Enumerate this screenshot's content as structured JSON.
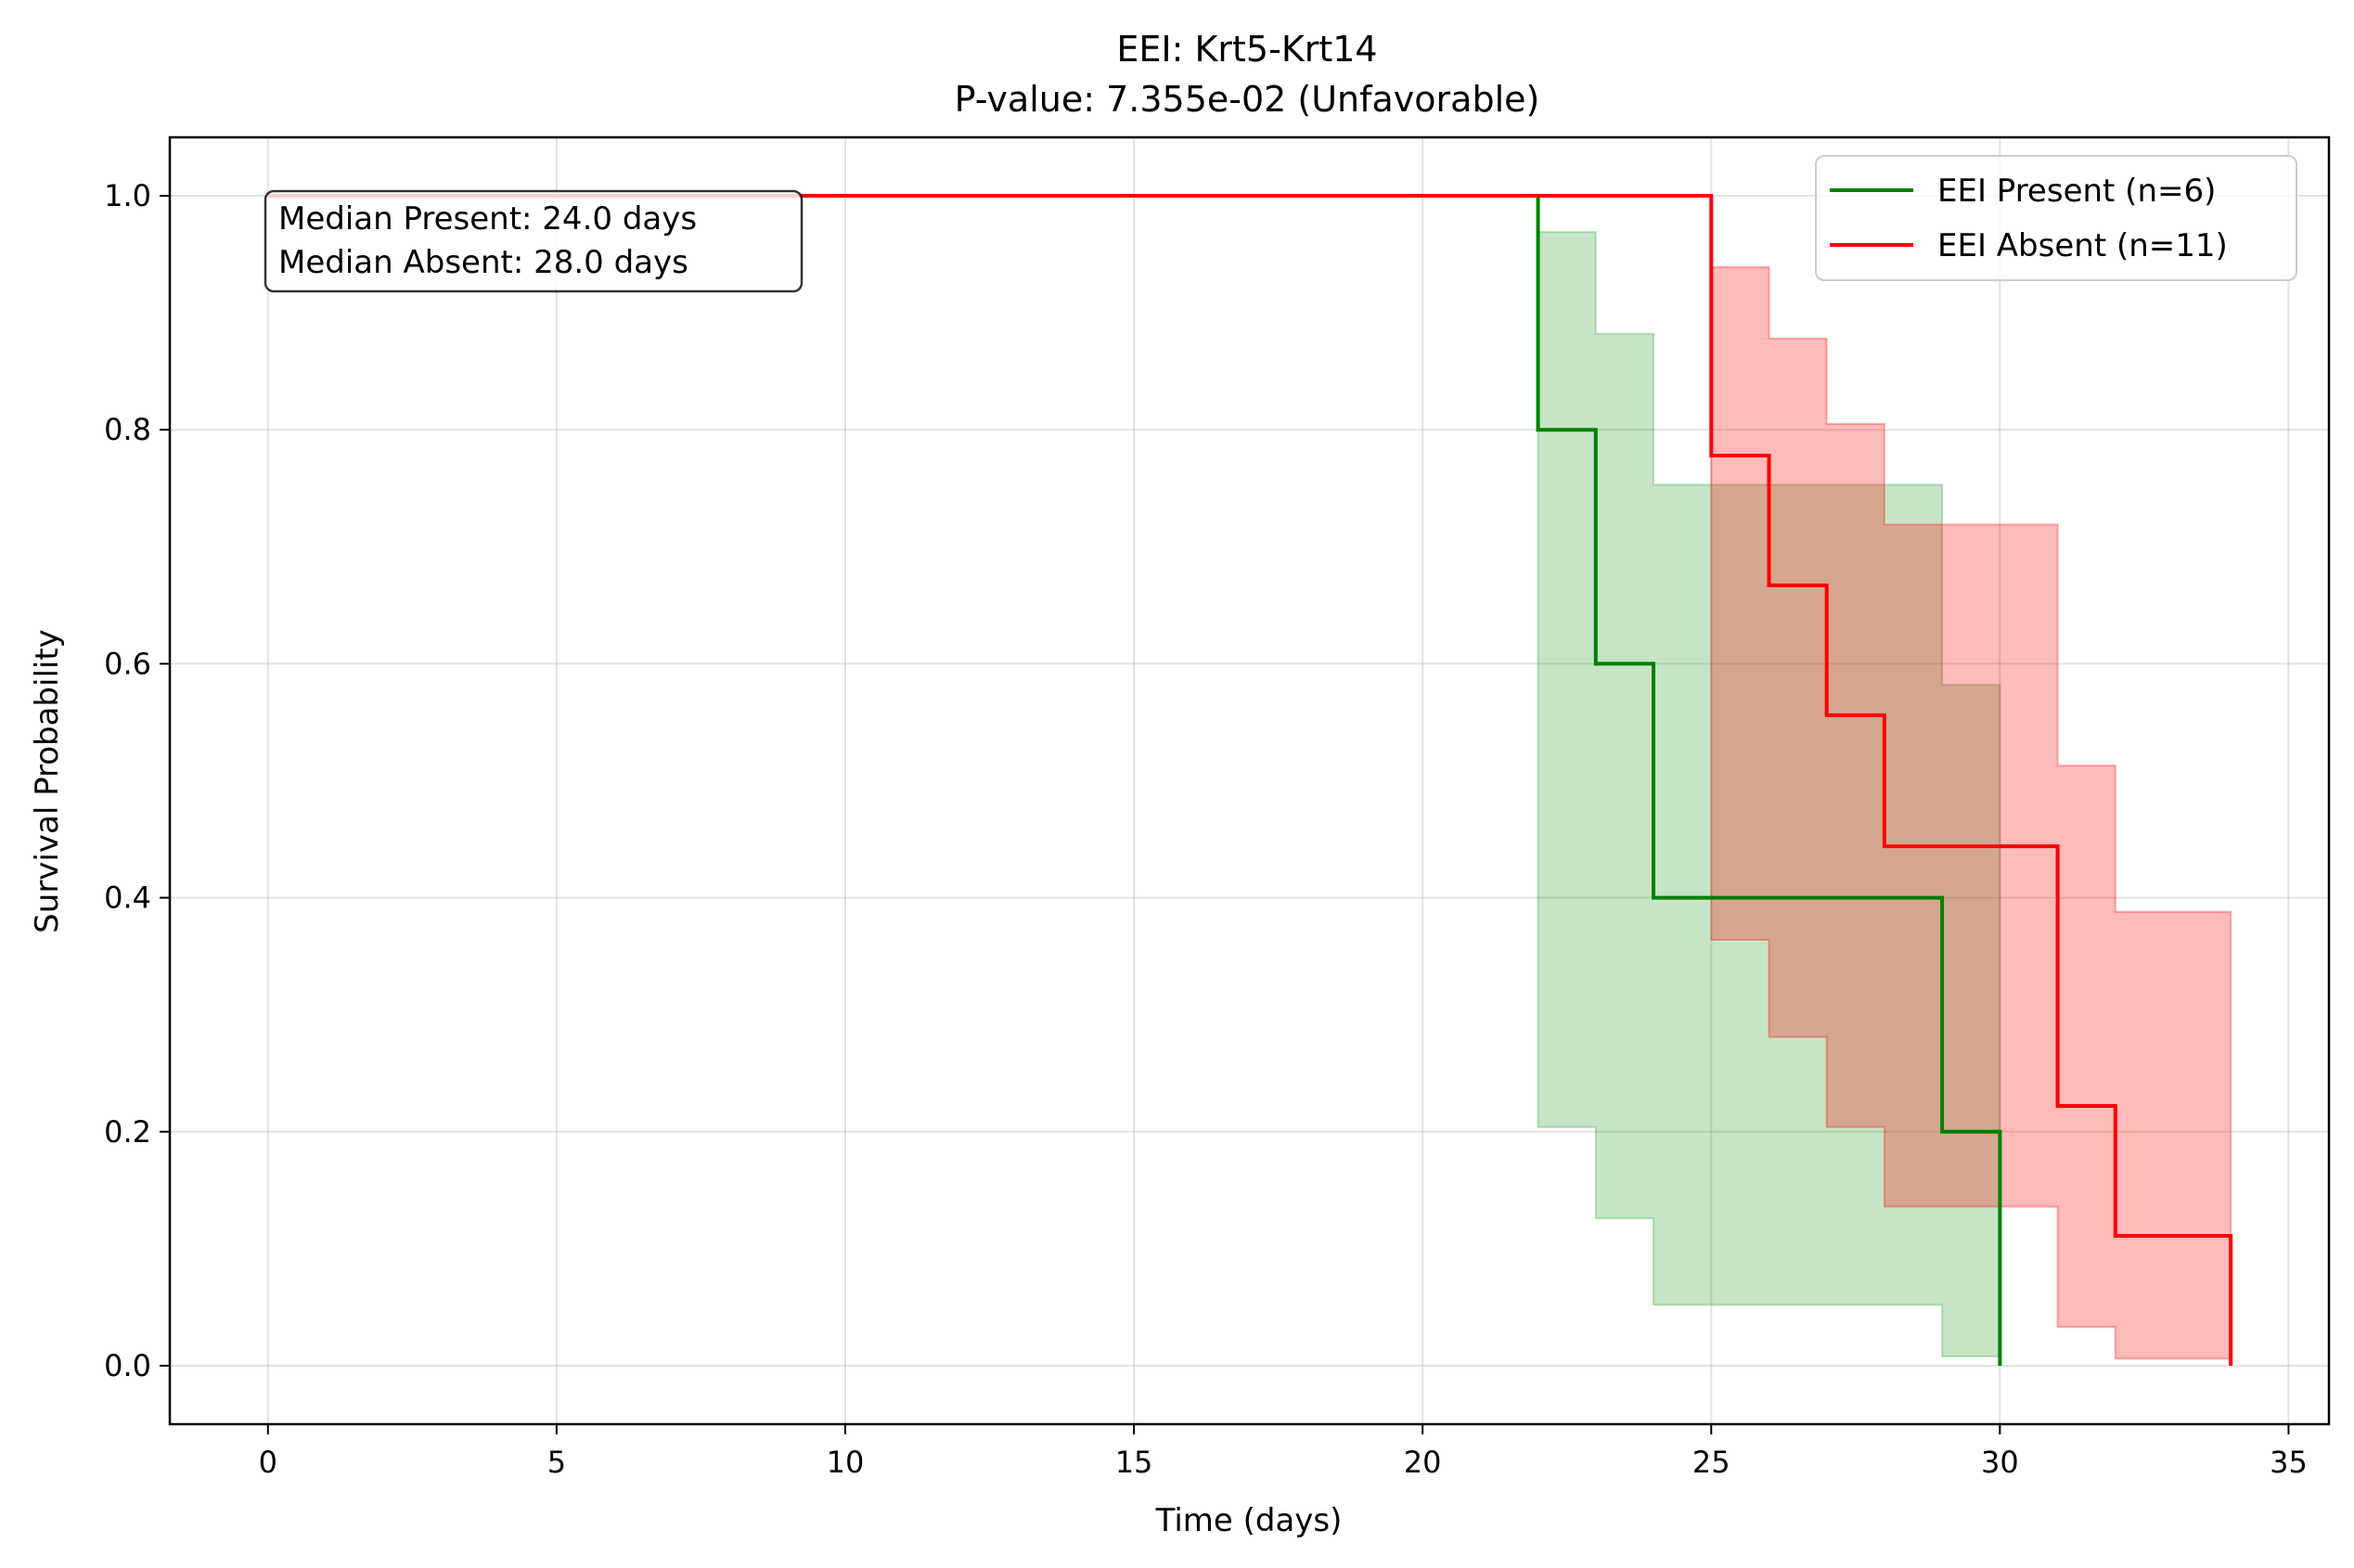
{
  "chart_data": {
    "type": "line",
    "subtype": "kaplan-meier-step",
    "title": "EEI: Krt5-Krt14",
    "subtitle": "P-value: 7.355e-02 (Unfavorable)",
    "xlabel": "Time (days)",
    "ylabel": "Survival Probability",
    "xlim": [
      -1.7,
      35.7
    ],
    "ylim": [
      -0.05,
      1.05
    ],
    "xticks": [
      0,
      5,
      10,
      15,
      20,
      25,
      30,
      35
    ],
    "xtick_labels": [
      "0",
      "5",
      "10",
      "15",
      "20",
      "25",
      "30",
      "35"
    ],
    "yticks": [
      0.0,
      0.2,
      0.4,
      0.6,
      0.8,
      1.0
    ],
    "ytick_labels": [
      "0.0",
      "0.2",
      "0.4",
      "0.6",
      "0.8",
      "1.0"
    ],
    "grid": true,
    "legend_position": "top-right",
    "annotation": {
      "lines": [
        "Median Present: 24.0 days",
        "Median Absent: 28.0 days"
      ],
      "position": "top-left"
    },
    "series": [
      {
        "name": "EEI Present (n=6)",
        "color": "#008000",
        "band_color": "#2ca02c",
        "x": [
          0,
          22,
          23,
          24,
          29,
          30
        ],
        "y": [
          1.0,
          0.8,
          0.6,
          0.4,
          0.2,
          0.0
        ],
        "ci_lower": [
          1.0,
          0.204,
          0.126,
          0.052,
          0.008,
          0.008
        ],
        "ci_upper": [
          1.0,
          0.969,
          0.882,
          0.753,
          0.582,
          0.582
        ]
      },
      {
        "name": "EEI Absent (n=11)",
        "color": "#ff0000",
        "band_color": "#ff0000",
        "x": [
          0,
          25,
          26,
          27,
          28,
          31,
          32,
          34
        ],
        "y": [
          1.0,
          0.778,
          0.667,
          0.556,
          0.444,
          0.222,
          0.111,
          0.0
        ],
        "ci_lower": [
          1.0,
          0.364,
          0.281,
          0.204,
          0.136,
          0.033,
          0.006,
          0.006
        ],
        "ci_upper": [
          1.0,
          0.939,
          0.878,
          0.805,
          0.719,
          0.513,
          0.388,
          0.388
        ]
      }
    ]
  }
}
